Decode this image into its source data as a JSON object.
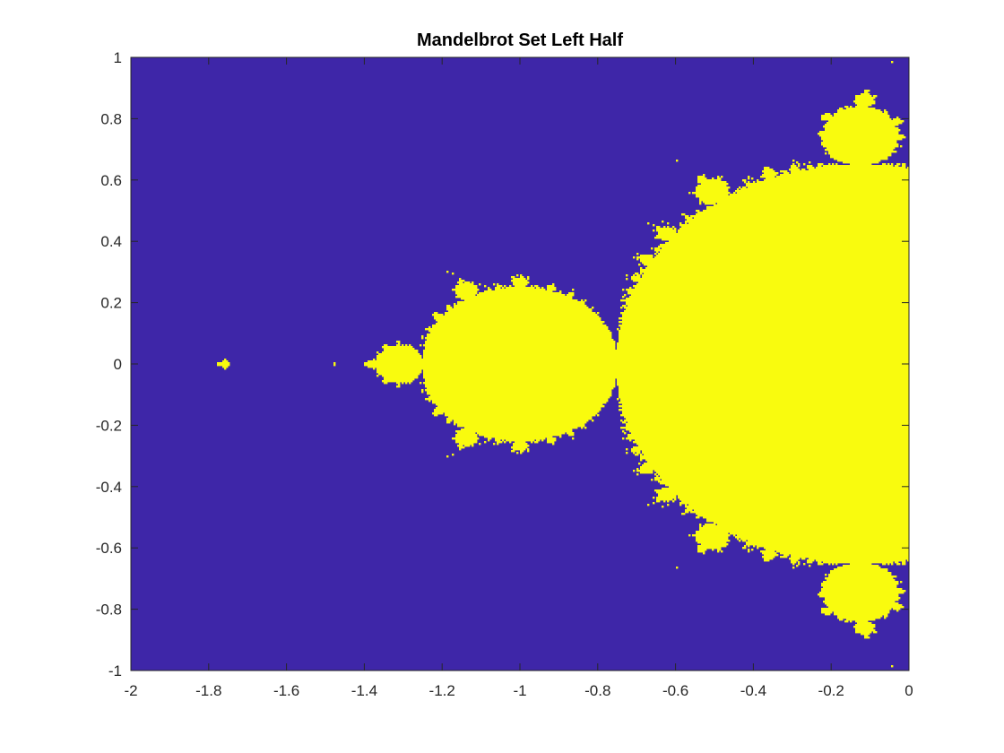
{
  "chart_data": {
    "type": "heatmap",
    "title": "Mandelbrot Set Left Half",
    "xlabel": "",
    "ylabel": "",
    "xlim": [
      -2,
      0
    ],
    "ylim": [
      -1,
      1
    ],
    "x_ticks": [
      "-2",
      "-1.8",
      "-1.6",
      "-1.4",
      "-1.2",
      "-1",
      "-0.8",
      "-0.6",
      "-0.4",
      "-0.2",
      "0"
    ],
    "y_ticks": [
      "1",
      "0.8",
      "0.6",
      "0.4",
      "0.2",
      "0",
      "-0.2",
      "-0.4",
      "-0.6",
      "-0.8",
      "-1"
    ],
    "grid": false,
    "colors": {
      "outside_set": "#3e26a8",
      "inside_set": "#f9fb0e"
    },
    "max_iterations": 100
  }
}
